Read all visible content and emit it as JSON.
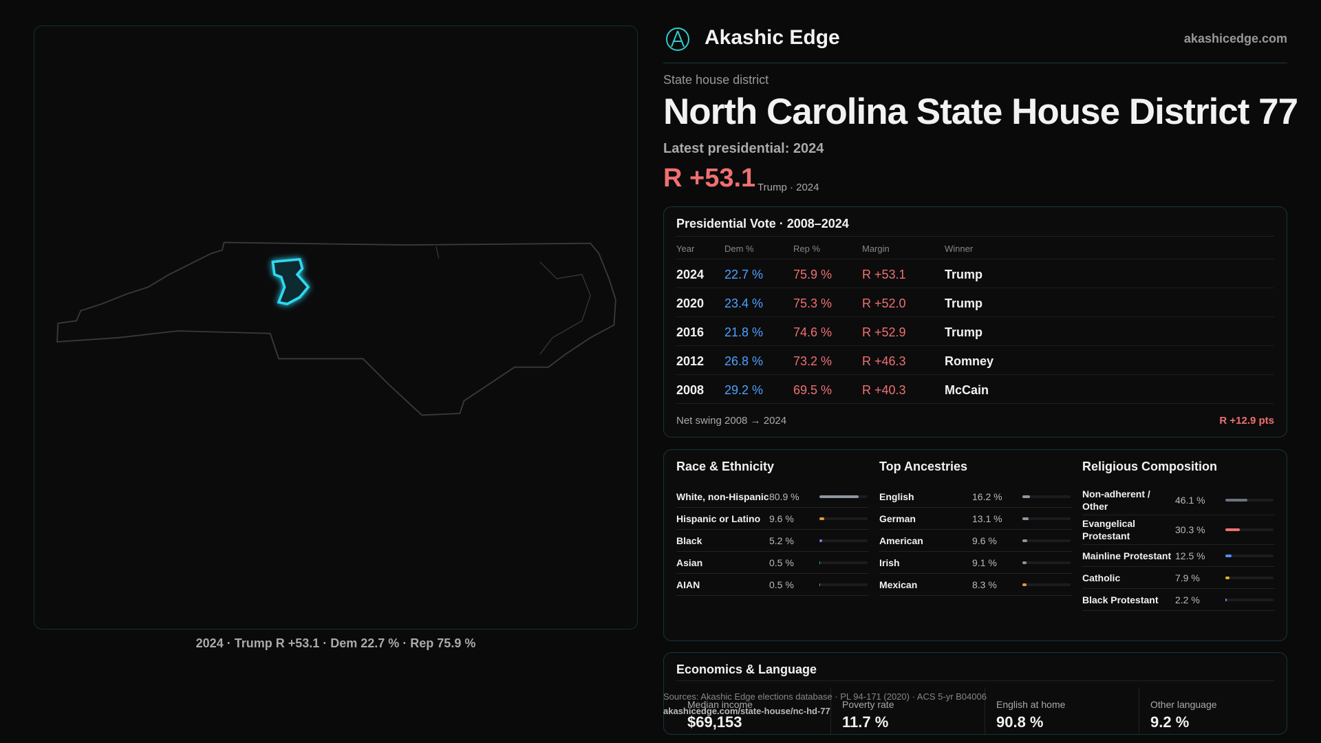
{
  "header": {
    "brand": "Akashic Edge",
    "site": "akashicedge.com"
  },
  "district": {
    "kind": "State house district",
    "title": "North Carolina State House District 77",
    "latest_label": "Latest presidential: 2024",
    "margin": "R +53.1",
    "margin_note": "Trump · 2024"
  },
  "map": {
    "caption": "2024 · Trump R +53.1 · Dem 22.7 % · Rep 75.9 %"
  },
  "presidential": {
    "title": "Presidential Vote · 2008–2024",
    "columns": [
      "Year",
      "Dem %",
      "Rep %",
      "Margin",
      "Winner"
    ],
    "rows": [
      [
        "2024",
        "22.7 %",
        "75.9 %",
        "R +53.1",
        "Trump"
      ],
      [
        "2020",
        "23.4 %",
        "75.3 %",
        "R +52.0",
        "Trump"
      ],
      [
        "2016",
        "21.8 %",
        "74.6 %",
        "R +52.9",
        "Trump"
      ],
      [
        "2012",
        "26.8 %",
        "73.2 %",
        "R +46.3",
        "Romney"
      ],
      [
        "2008",
        "29.2 %",
        "69.5 %",
        "R +40.3",
        "McCain"
      ]
    ],
    "swing_label": "Net swing 2008 → 2024",
    "swing_value": "R +12.9 pts"
  },
  "race": {
    "title": "Race & Ethnicity",
    "items": [
      {
        "label": "White, non-Hispanic",
        "value": 80.9,
        "value_label": "80.9 %",
        "color": "#8e96a3"
      },
      {
        "label": "Hispanic or Latino",
        "value": 9.6,
        "value_label": "9.6 %",
        "color": "#e39a2d"
      },
      {
        "label": "Black",
        "value": 5.2,
        "value_label": "5.2 %",
        "color": "#8a7cf0"
      },
      {
        "label": "Asian",
        "value": 0.5,
        "value_label": "0.5 %",
        "color": "#2fb8a0"
      },
      {
        "label": "AIAN",
        "value": 0.5,
        "value_label": "0.5 %",
        "color": "#e0704a"
      }
    ]
  },
  "ancestry": {
    "title": "Top Ancestries",
    "items": [
      {
        "label": "English",
        "value": 16.2,
        "value_label": "16.2 %",
        "color": "#8e96a3"
      },
      {
        "label": "German",
        "value": 13.1,
        "value_label": "13.1 %",
        "color": "#8e96a3"
      },
      {
        "label": "American",
        "value": 9.6,
        "value_label": "9.6 %",
        "color": "#8e96a3"
      },
      {
        "label": "Irish",
        "value": 9.1,
        "value_label": "9.1 %",
        "color": "#8e96a3"
      },
      {
        "label": "Mexican",
        "value": 8.3,
        "value_label": "8.3 %",
        "color": "#e39a2d"
      }
    ]
  },
  "religion": {
    "title": "Religious Composition",
    "items": [
      {
        "label": "Non-adherent / Other",
        "value": 46.1,
        "value_label": "46.1 %",
        "color": "#6b7280"
      },
      {
        "label": "Evangelical Protestant",
        "value": 30.3,
        "value_label": "30.3 %",
        "color": "#f07070"
      },
      {
        "label": "Mainline Protestant",
        "value": 12.5,
        "value_label": "12.5 %",
        "color": "#4e8ef0"
      },
      {
        "label": "Catholic",
        "value": 7.9,
        "value_label": "7.9 %",
        "color": "#e3b02d"
      },
      {
        "label": "Black Protestant",
        "value": 2.2,
        "value_label": "2.2 %",
        "color": "#8a7cf0"
      }
    ]
  },
  "economics": {
    "title": "Economics & Language",
    "items": [
      {
        "label": "Median income",
        "value": "$69,153"
      },
      {
        "label": "Poverty rate",
        "value": "11.7 %"
      },
      {
        "label": "English at home",
        "value": "90.8 %"
      },
      {
        "label": "Other language",
        "value": "9.2 %"
      }
    ]
  },
  "footer": {
    "source": "Sources: Akashic Edge elections database · PL 94-171 (2020) · ACS 5-yr B04006",
    "url": "akashicedge.com/state-house/nc-hd-77"
  }
}
